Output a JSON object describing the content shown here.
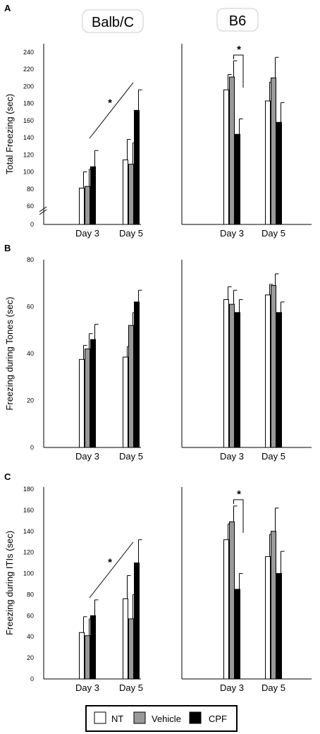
{
  "strain_labels": [
    "Balb/C",
    "B6"
  ],
  "groups": [
    "NT",
    "Vehicle",
    "CPF"
  ],
  "group_colors": [
    "#ffffff",
    "#999999",
    "#000000"
  ],
  "legend": {
    "items": [
      "NT",
      "Vehicle",
      "CPF"
    ]
  },
  "chart_data": [
    {
      "type": "bar",
      "panel": "A",
      "ylabel": "Total Freezing (sec)",
      "ylim": [
        60,
        240
      ],
      "axis_break": true,
      "yticks": [
        "0",
        "60",
        "80",
        "100",
        "120",
        "140",
        "160",
        "180",
        "200",
        "220",
        "240"
      ],
      "categories": [
        "Day 3",
        "Day 5"
      ],
      "subplots": [
        {
          "strain": "Balb/C",
          "series": [
            {
              "name": "NT",
              "values": [
                81,
                114
              ],
              "errors": [
                19,
                24
              ]
            },
            {
              "name": "Vehicle",
              "values": [
                83,
                109
              ],
              "errors": [
                20,
                25
              ]
            },
            {
              "name": "CPF",
              "values": [
                106,
                172
              ],
              "errors": [
                19,
                24
              ]
            }
          ],
          "annotations": [
            {
              "kind": "trend-line",
              "text": "*"
            }
          ]
        },
        {
          "strain": "B6",
          "series": [
            {
              "name": "NT",
              "values": [
                196,
                183
              ],
              "errors": [
                18,
                22
              ]
            },
            {
              "name": "Vehicle",
              "values": [
                211,
                210
              ],
              "errors": [
                19,
                24
              ]
            },
            {
              "name": "CPF",
              "values": [
                144,
                158
              ],
              "errors": [
                18,
                23
              ]
            }
          ],
          "annotations": [
            {
              "kind": "bracket",
              "category": "Day 3",
              "text": "*"
            }
          ]
        }
      ]
    },
    {
      "type": "bar",
      "panel": "B",
      "ylabel": "Freezing during Tones (sec)",
      "ylim": [
        0,
        80
      ],
      "yticks": [
        "0",
        "20",
        "40",
        "60",
        "80"
      ],
      "categories": [
        "Day 3",
        "Day 5"
      ],
      "subplots": [
        {
          "strain": "Balb/C",
          "series": [
            {
              "name": "NT",
              "values": [
                37.5,
                38.5
              ],
              "errors": [
                6,
                4.5
              ]
            },
            {
              "name": "Vehicle",
              "values": [
                42,
                52
              ],
              "errors": [
                6.5,
                5.5
              ]
            },
            {
              "name": "CPF",
              "values": [
                46,
                62
              ],
              "errors": [
                6.5,
                5
              ]
            }
          ],
          "annotations": []
        },
        {
          "strain": "B6",
          "series": [
            {
              "name": "NT",
              "values": [
                63,
                65
              ],
              "errors": [
                5.5,
                4.5
              ]
            },
            {
              "name": "Vehicle",
              "values": [
                61,
                69
              ],
              "errors": [
                6,
                5
              ]
            },
            {
              "name": "CPF",
              "values": [
                57.5,
                57.5
              ],
              "errors": [
                5.5,
                4.5
              ]
            }
          ],
          "annotations": []
        }
      ]
    },
    {
      "type": "bar",
      "panel": "C",
      "ylabel": "Freezing during ITIs (sec)",
      "ylim": [
        0,
        180
      ],
      "yticks": [
        "0",
        "20",
        "40",
        "60",
        "80",
        "100",
        "120",
        "140",
        "160",
        "180"
      ],
      "categories": [
        "Day 3",
        "Day 5"
      ],
      "subplots": [
        {
          "strain": "Balb/C",
          "series": [
            {
              "name": "NT",
              "values": [
                44,
                76
              ],
              "errors": [
                15,
                22
              ]
            },
            {
              "name": "Vehicle",
              "values": [
                41,
                57
              ],
              "errors": [
                16,
                23
              ]
            },
            {
              "name": "CPF",
              "values": [
                60,
                110
              ],
              "errors": [
                15,
                22
              ]
            }
          ],
          "annotations": [
            {
              "kind": "trend-line",
              "text": "*"
            }
          ]
        },
        {
          "strain": "B6",
          "series": [
            {
              "name": "NT",
              "values": [
                132,
                116
              ],
              "errors": [
                15,
                21
              ]
            },
            {
              "name": "Vehicle",
              "values": [
                149,
                140
              ],
              "errors": [
                15,
                22
              ]
            },
            {
              "name": "CPF",
              "values": [
                85,
                100
              ],
              "errors": [
                15,
                21
              ]
            }
          ],
          "annotations": [
            {
              "kind": "bracket",
              "category": "Day 3",
              "text": "*"
            }
          ]
        }
      ]
    }
  ]
}
